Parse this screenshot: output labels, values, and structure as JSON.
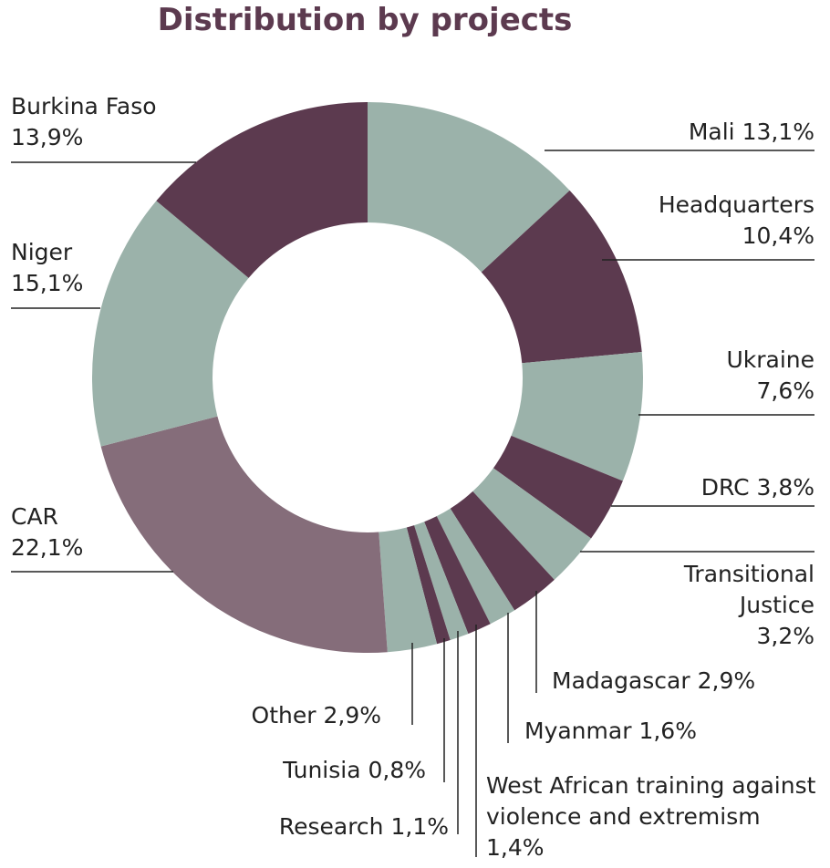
{
  "chart_data": {
    "type": "donut",
    "title": "Distribution by projects",
    "categories": [
      "Mali",
      "Headquarters",
      "Ukraine",
      "DRC",
      "Transitional Justice",
      "Madagascar",
      "Myanmar",
      "West African training against violence and extremism",
      "Research",
      "Tunisia",
      "Other",
      "CAR",
      "Niger",
      "Burkina Faso"
    ],
    "values": [
      13.1,
      10.4,
      7.6,
      3.8,
      3.2,
      2.9,
      1.6,
      1.4,
      1.1,
      0.8,
      2.9,
      22.1,
      15.1,
      13.9
    ],
    "value_labels": [
      "13,1%",
      "10,4%",
      "7,6%",
      "3,8%",
      "3,2%",
      "2,9%",
      "1,6%",
      "1,4%",
      "1,1%",
      "0,8%",
      "2,9%",
      "22,1%",
      "15,1%",
      "13,9%"
    ],
    "colors": [
      "#9bb2aa",
      "#5c3a4f",
      "#9bb2aa",
      "#5c3a4f",
      "#9bb2aa",
      "#5c3a4f",
      "#9bb2aa",
      "#5c3a4f",
      "#9bb2aa",
      "#5c3a4f",
      "#9bb2aa",
      "#856d7a",
      "#9bb2aa",
      "#5c3a4f"
    ]
  }
}
